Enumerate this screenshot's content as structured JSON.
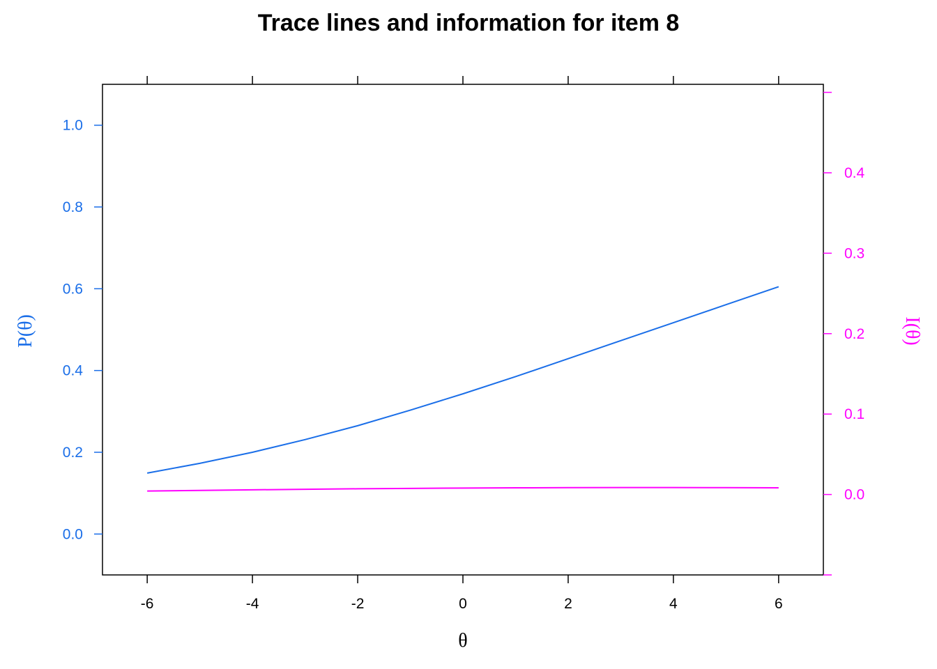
{
  "chart_data": {
    "type": "line",
    "title": "Trace lines and information for item 8",
    "xlabel": "θ",
    "ylabel_left": "P(θ)",
    "ylabel_right": "I(θ)",
    "xlim": [
      -6.85,
      6.85
    ],
    "ylim_left": [
      -0.1,
      1.1
    ],
    "ylim_right": [
      -0.1,
      0.51
    ],
    "x_ticks": [
      -6,
      -4,
      -2,
      0,
      2,
      4,
      6
    ],
    "y_ticks_left": [
      0.0,
      0.2,
      0.4,
      0.6,
      0.8,
      1.0
    ],
    "y_ticks_right": [
      0.0,
      0.1,
      0.2,
      0.3,
      0.4
    ],
    "x_tick_labels": [
      "-6",
      "-4",
      "-2",
      "0",
      "2",
      "4",
      "6"
    ],
    "y_tick_labels_left": [
      "0.0",
      "0.2",
      "0.4",
      "0.6",
      "0.8",
      "1.0"
    ],
    "y_tick_labels_right": [
      "0.0",
      "0.1",
      "0.2",
      "0.3",
      "0.4"
    ],
    "grid": false,
    "colors": {
      "trace": "#1a6ee8",
      "info": "#ff00ff",
      "axis": "#000000"
    },
    "series": [
      {
        "axis": "left",
        "x": [
          -6,
          -5,
          -4,
          -3,
          -2,
          -1,
          0,
          1,
          2,
          3,
          4,
          5,
          6
        ],
        "values": [
          0.149,
          0.173,
          0.2,
          0.231,
          0.265,
          0.303,
          0.343,
          0.385,
          0.429,
          0.473,
          0.517,
          0.561,
          0.605
        ]
      },
      {
        "axis": "right",
        "x": [
          -6,
          -5,
          -4,
          -3,
          -2,
          -1,
          0,
          1,
          2,
          3,
          4,
          5,
          6
        ],
        "values": [
          0.0043,
          0.0051,
          0.0058,
          0.0065,
          0.0071,
          0.0076,
          0.008,
          0.0083,
          0.0085,
          0.0086,
          0.0086,
          0.0085,
          0.0083
        ]
      }
    ]
  }
}
